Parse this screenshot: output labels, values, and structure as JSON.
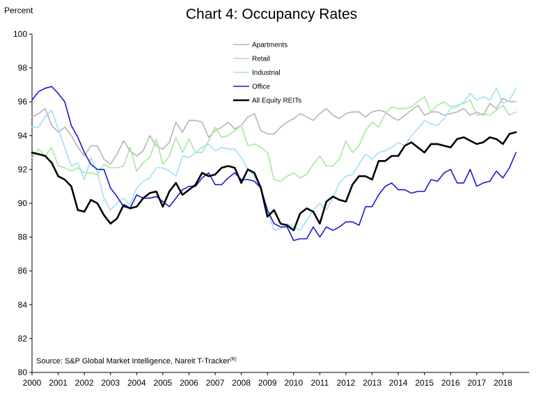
{
  "chart_data": {
    "type": "line",
    "title": "Chart 4: Occupancy Rates",
    "ylabel": "Percent",
    "xlabel": "",
    "ylim": [
      80,
      100
    ],
    "yticks": [
      "80",
      "82",
      "84",
      "86",
      "88",
      "90",
      "92",
      "94",
      "96",
      "98",
      "100"
    ],
    "xlim": [
      2000,
      2019
    ],
    "xticks": [
      "2000",
      "2001",
      "2002",
      "2003",
      "2004",
      "2005",
      "2006",
      "2007",
      "2008",
      "2009",
      "2010",
      "2011",
      "2012",
      "2013",
      "2014",
      "2015",
      "2016",
      "2017",
      "2018"
    ],
    "grid": false,
    "legend_position": "top-center",
    "source": "Source: S&P Global Market Intelligence,  Nareit T-Tracker",
    "source_superscript": "(R)",
    "x": [
      2000.0,
      2000.25,
      2000.5,
      2000.75,
      2001.0,
      2001.25,
      2001.5,
      2001.75,
      2002.0,
      2002.25,
      2002.5,
      2002.75,
      2003.0,
      2003.25,
      2003.5,
      2003.75,
      2004.0,
      2004.25,
      2004.5,
      2004.75,
      2005.0,
      2005.25,
      2005.5,
      2005.75,
      2006.0,
      2006.25,
      2006.5,
      2006.75,
      2007.0,
      2007.25,
      2007.5,
      2007.75,
      2008.0,
      2008.25,
      2008.5,
      2008.75,
      2009.0,
      2009.25,
      2009.5,
      2009.75,
      2010.0,
      2010.25,
      2010.5,
      2010.75,
      2011.0,
      2011.25,
      2011.5,
      2011.75,
      2012.0,
      2012.25,
      2012.5,
      2012.75,
      2013.0,
      2013.25,
      2013.5,
      2013.75,
      2014.0,
      2014.25,
      2014.5,
      2014.75,
      2015.0,
      2015.25,
      2015.5,
      2015.75,
      2016.0,
      2016.25,
      2016.5,
      2016.75,
      2017.0,
      2017.25,
      2017.5,
      2017.75,
      2018.0,
      2018.25,
      2018.5
    ],
    "series": [
      {
        "name": "Apartments",
        "color": "#b4b4b4",
        "width": 1.6,
        "values": [
          95.1,
          95.3,
          95.6,
          94.6,
          94.2,
          94.5,
          94.0,
          93.3,
          92.8,
          93.4,
          93.4,
          92.6,
          92.3,
          92.9,
          93.7,
          93.1,
          92.8,
          93.1,
          94.0,
          93.4,
          93.2,
          93.6,
          94.8,
          94.2,
          94.9,
          94.9,
          94.8,
          93.9,
          94.3,
          94.5,
          94.8,
          94.4,
          94.6,
          95.1,
          95.3,
          94.3,
          94.1,
          94.1,
          94.5,
          94.8,
          95.0,
          95.3,
          95.1,
          94.9,
          95.3,
          95.6,
          95.2,
          95.0,
          95.3,
          95.4,
          95.4,
          95.1,
          95.4,
          95.5,
          95.4,
          95.1,
          94.9,
          95.2,
          95.5,
          95.8,
          95.2,
          95.4,
          95.4,
          95.2,
          95.3,
          95.4,
          95.6,
          95.2,
          95.4,
          95.2,
          95.9,
          95.6,
          96.2,
          96.0,
          96.0
        ]
      },
      {
        "name": "Retail",
        "color": "#a6e89a",
        "width": 1.6,
        "values": [
          92.7,
          93.2,
          92.8,
          93.3,
          92.2,
          92.1,
          91.9,
          92.1,
          91.8,
          91.8,
          91.7,
          92.3,
          92.1,
          92.1,
          92.2,
          93.3,
          91.9,
          92.4,
          92.7,
          93.8,
          92.3,
          92.8,
          93.9,
          93.0,
          93.8,
          93.0,
          93.0,
          93.7,
          94.5,
          93.9,
          94.0,
          94.3,
          94.6,
          93.4,
          93.5,
          93.3,
          93.0,
          91.4,
          91.3,
          91.6,
          91.8,
          91.5,
          91.7,
          92.3,
          92.8,
          92.2,
          92.2,
          92.6,
          93.7,
          93.0,
          93.4,
          94.3,
          94.8,
          94.5,
          95.3,
          95.7,
          95.6,
          95.6,
          95.7,
          96.0,
          96.3,
          95.4,
          95.8,
          96.0,
          95.7,
          95.8,
          95.9,
          96.1,
          95.2,
          95.3,
          95.2,
          95.5,
          95.8,
          95.2,
          95.4
        ]
      },
      {
        "name": "Industrial",
        "color": "#a0e0f4",
        "width": 1.6,
        "values": [
          94.5,
          94.5,
          95.1,
          95.5,
          94.4,
          93.3,
          92.2,
          92.4,
          91.4,
          92.7,
          91.8,
          90.3,
          89.6,
          90.0,
          90.3,
          89.9,
          90.9,
          91.3,
          91.5,
          92.1,
          92.1,
          91.9,
          91.6,
          92.8,
          92.7,
          93.0,
          93.3,
          93.5,
          93.1,
          93.3,
          93.2,
          93.2,
          92.7,
          92.0,
          91.6,
          90.8,
          89.6,
          88.4,
          88.5,
          88.8,
          88.6,
          88.4,
          89.0,
          89.6,
          90.0,
          89.6,
          90.3,
          91.2,
          91.6,
          91.7,
          92.3,
          92.9,
          92.6,
          93.0,
          93.1,
          93.3,
          93.6,
          93.4,
          94.0,
          94.4,
          94.9,
          94.7,
          94.6,
          95.0,
          95.6,
          95.7,
          96.0,
          96.5,
          96.1,
          96.3,
          96.1,
          96.8,
          95.9,
          96.1,
          96.8
        ]
      },
      {
        "name": "Office",
        "color": "#1818d0",
        "width": 1.6,
        "values": [
          96.1,
          96.6,
          96.8,
          96.9,
          96.5,
          96.0,
          94.6,
          93.9,
          93.0,
          92.3,
          92.0,
          92.0,
          90.9,
          90.4,
          89.8,
          89.7,
          90.5,
          90.3,
          90.3,
          90.4,
          90.1,
          89.8,
          90.3,
          90.8,
          91.0,
          91.0,
          91.5,
          91.8,
          91.1,
          91.1,
          91.5,
          91.8,
          91.4,
          91.4,
          91.3,
          90.9,
          89.6,
          88.8,
          88.6,
          88.6,
          87.8,
          87.9,
          87.9,
          88.6,
          88.0,
          88.6,
          88.4,
          88.6,
          88.9,
          88.9,
          88.7,
          89.8,
          89.8,
          90.5,
          91.0,
          91.2,
          90.8,
          90.8,
          90.6,
          90.7,
          90.7,
          91.4,
          91.3,
          91.8,
          92.0,
          91.2,
          91.2,
          92.0,
          91.0,
          91.2,
          91.3,
          91.9,
          91.5,
          92.1,
          93.0
        ]
      },
      {
        "name": "All Equity REITs",
        "color": "#000000",
        "width": 2.6,
        "values": [
          93.0,
          92.9,
          92.8,
          92.4,
          91.6,
          91.4,
          91.0,
          89.6,
          89.5,
          90.2,
          90.0,
          89.3,
          88.8,
          89.1,
          89.9,
          89.7,
          89.8,
          90.3,
          90.6,
          90.7,
          89.8,
          90.7,
          91.2,
          90.5,
          90.8,
          91.1,
          91.8,
          91.6,
          91.7,
          92.1,
          92.2,
          92.1,
          91.2,
          92.0,
          91.8,
          90.9,
          89.2,
          89.6,
          88.8,
          88.7,
          88.4,
          89.4,
          89.7,
          89.5,
          88.8,
          90.1,
          90.4,
          90.2,
          90.1,
          91.1,
          91.6,
          91.6,
          91.4,
          92.5,
          92.5,
          92.8,
          92.8,
          93.4,
          93.6,
          93.3,
          93.0,
          93.5,
          93.5,
          93.4,
          93.3,
          93.8,
          93.9,
          93.7,
          93.5,
          93.6,
          93.9,
          93.8,
          93.5,
          94.1,
          94.2
        ]
      }
    ]
  }
}
